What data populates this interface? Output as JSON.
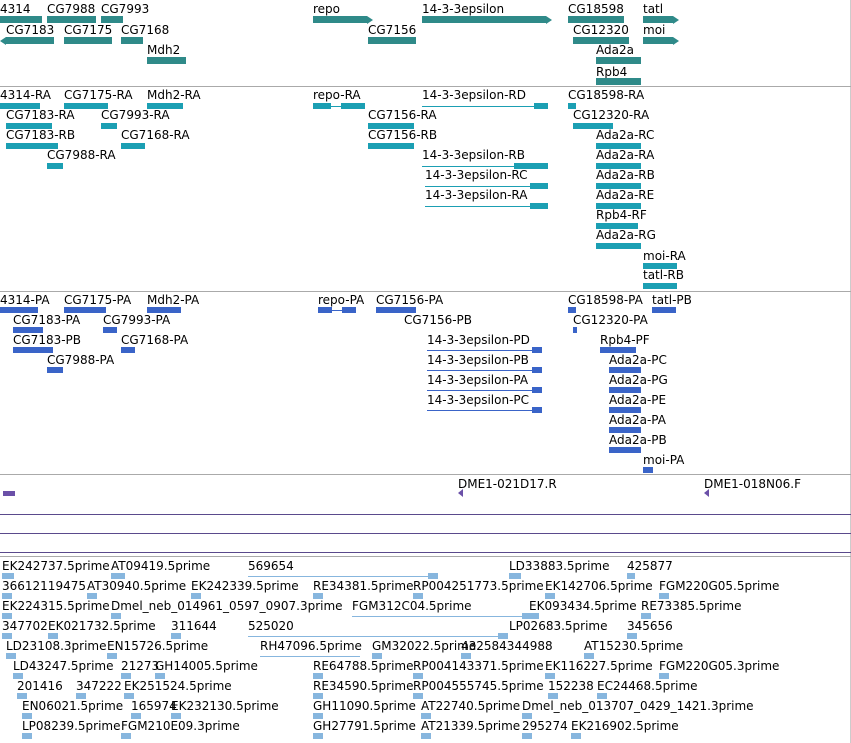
{
  "colors": {
    "gene": "#2f8a89",
    "rna": "#1b9fb3",
    "protein": "#3a64c8",
    "clone": "#6b50a8",
    "est": "#87b6de",
    "separator": "#aaaaaa"
  },
  "genes": [
    "4314",
    "CG7988",
    "CG7993",
    "repo",
    "14-3-3epsilon",
    "CG18598",
    "tatl",
    "CG7183",
    "CG7175",
    "CG7168",
    "CG7156",
    "CG12320",
    "moi",
    "Mdh2",
    "Ada2a",
    "Rpb4"
  ],
  "rnas": [
    "4314-RA",
    "CG7175-RA",
    "Mdh2-RA",
    "repo-RA",
    "14-3-3epsilon-RD",
    "CG18598-RA",
    "CG7183-RA",
    "CG7993-RA",
    "CG7156-RA",
    "CG12320-RA",
    "CG7183-RB",
    "CG7168-RA",
    "CG7156-RB",
    "Ada2a-RC",
    "CG7988-RA",
    "Ada2a-RA",
    "14-3-3epsilon-RB",
    "Ada2a-RB",
    "14-3-3epsilon-RC",
    "Ada2a-RE",
    "14-3-3epsilon-RA",
    "Rpb4-RF",
    "Ada2a-RG",
    "moi-RA",
    "tatl-RB"
  ],
  "proteins": [
    "4314-PA",
    "CG7175-PA",
    "Mdh2-PA",
    "repo-PA",
    "CG7156-PA",
    "CG18598-PA",
    "tatl-PB",
    "CG7183-PA",
    "CG7993-PA",
    "CG7156-PB",
    "CG12320-PA",
    "CG7183-PB",
    "CG7168-PA",
    "14-3-3epsilon-PD",
    "Rpb4-PF",
    "CG7988-PA",
    "14-3-3epsilon-PB",
    "Ada2a-PC",
    "14-3-3epsilon-PA",
    "Ada2a-PG",
    "14-3-3epsilon-PC",
    "Ada2a-PE",
    "Ada2a-PA",
    "Ada2a-PB",
    "moi-PA"
  ],
  "clones": [
    "DME1-021D17.R",
    "DME1-018N06.F"
  ],
  "ests": [
    "EK242737.5prime",
    "AT09419.5prime",
    "569654",
    "LD33883.5prime",
    "425877",
    "36612119475",
    "AT30940.5prime",
    "EK242339.5prime",
    "RE34381.5prime",
    "RP004251773.5prime",
    "EK142706.5prime",
    "FGM220G05.5prime",
    "EK224315.5prime",
    "Dmel_neb_014961_0597_0907.3prime",
    "FGM312C04.5prime",
    "EK093434.5prime",
    "RE73385.5prime",
    "347702",
    "EK021732.5prime",
    "311644",
    "525020",
    "LP02683.5prime",
    "345656",
    "LD23108.3prime",
    "EN15726.5prime",
    "RH47096.5prime",
    "GM32022.5prime",
    "432584344988",
    "AT15230.5prime",
    "LD43247.5prime",
    "21273",
    "GH14005.5prime",
    "RE64788.5prime",
    "RP004143371.5prime",
    "EK116227.5prime",
    "FGM220G05.3prime",
    "201416",
    "347222",
    "EK251524.5prime",
    "RE34590.5prime",
    "RP004555745.5prime",
    "152238",
    "EC24468.5prime",
    "EN06021.5prime",
    "165974",
    "EK232130.5prime",
    "GH11090.5prime",
    "AT22740.5prime",
    "Dmel_neb_013707_0429_1421.3prime",
    "LP08239.5prime",
    "FGM210E09.3prime",
    "GH27791.5prime",
    "AT21339.5prime",
    "295274",
    "EK216902.5prime"
  ]
}
